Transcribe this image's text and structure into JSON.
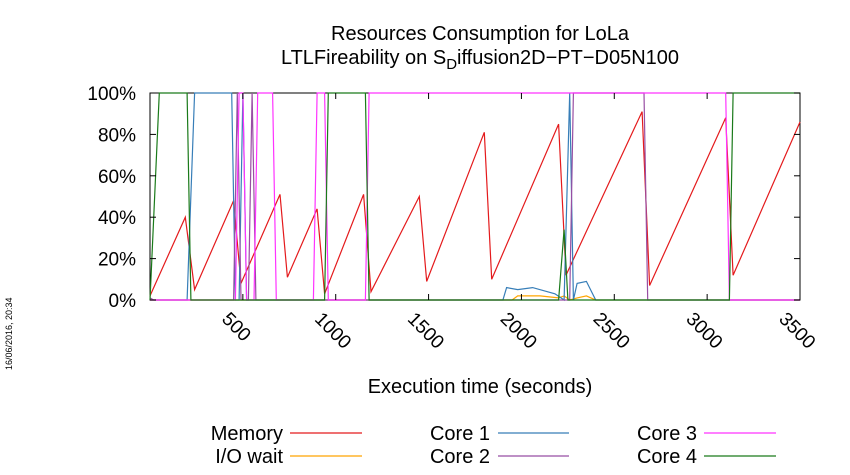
{
  "timestamp": "16/06/2016, 20:34",
  "chart_data": {
    "type": "line",
    "title": "Resources Consumption for LoLa",
    "subtitle_prefix": "LTLFireability on S",
    "subtitle_sub": "D",
    "subtitle_rest": "iffusion2D−PT−D05N100",
    "xlabel": "Execution time (seconds)",
    "ylabel": "",
    "xlim": [
      0,
      3500
    ],
    "ylim": [
      0,
      100
    ],
    "xticks": [
      500,
      1000,
      1500,
      2000,
      2500,
      3000,
      3500
    ],
    "yticks": [
      0,
      20,
      40,
      60,
      80,
      100
    ],
    "ytick_labels": [
      "0%",
      "20%",
      "40%",
      "60%",
      "80%",
      "100%"
    ],
    "grid": false,
    "legend_position": "bottom",
    "series": [
      {
        "name": "Memory",
        "color": "#e41a1c",
        "points": [
          [
            0,
            2
          ],
          [
            190,
            40
          ],
          [
            240,
            5
          ],
          [
            450,
            48
          ],
          [
            490,
            8
          ],
          [
            700,
            51
          ],
          [
            740,
            11
          ],
          [
            900,
            44
          ],
          [
            940,
            3
          ],
          [
            1150,
            51
          ],
          [
            1190,
            4
          ],
          [
            1450,
            50
          ],
          [
            1490,
            9
          ],
          [
            1800,
            81
          ],
          [
            1840,
            10
          ],
          [
            2200,
            85
          ],
          [
            2240,
            12
          ],
          [
            2650,
            91
          ],
          [
            2690,
            7
          ],
          [
            3100,
            88
          ],
          [
            3140,
            12
          ],
          [
            3500,
            86
          ]
        ]
      },
      {
        "name": "I/O wait",
        "color": "#ffa500",
        "points": [
          [
            0,
            0
          ],
          [
            1950,
            0
          ],
          [
            1980,
            2
          ],
          [
            2100,
            2
          ],
          [
            2200,
            1
          ],
          [
            2230,
            2
          ],
          [
            2260,
            0
          ],
          [
            2300,
            1
          ],
          [
            2350,
            2
          ],
          [
            2400,
            0
          ],
          [
            3500,
            0
          ]
        ]
      },
      {
        "name": "Core 1",
        "color": "#377eb8",
        "points": [
          [
            0,
            0
          ],
          [
            200,
            0
          ],
          [
            240,
            100
          ],
          [
            440,
            100
          ],
          [
            460,
            0
          ],
          [
            480,
            0
          ],
          [
            500,
            100
          ],
          [
            520,
            0
          ],
          [
            1900,
            0
          ],
          [
            1920,
            6
          ],
          [
            1980,
            5
          ],
          [
            2060,
            6
          ],
          [
            2180,
            3
          ],
          [
            2230,
            0
          ],
          [
            2260,
            100
          ],
          [
            2280,
            0
          ],
          [
            2300,
            8
          ],
          [
            2350,
            9
          ],
          [
            2400,
            0
          ],
          [
            3500,
            0
          ]
        ]
      },
      {
        "name": "Core 2",
        "color": "#984ea3",
        "points": [
          [
            0,
            1
          ],
          [
            20,
            0
          ],
          [
            450,
            0
          ],
          [
            470,
            100
          ],
          [
            490,
            0
          ],
          [
            530,
            0
          ],
          [
            550,
            100
          ],
          [
            570,
            0
          ],
          [
            2260,
            0
          ],
          [
            2280,
            100
          ],
          [
            2320,
            100
          ],
          [
            2340,
            100
          ],
          [
            2660,
            100
          ],
          [
            2680,
            0
          ],
          [
            3500,
            0
          ]
        ]
      },
      {
        "name": "Core 3",
        "color": "#ff33ff",
        "points": [
          [
            0,
            0
          ],
          [
            460,
            0
          ],
          [
            480,
            100
          ],
          [
            500,
            100
          ],
          [
            520,
            0
          ],
          [
            560,
            0
          ],
          [
            580,
            100
          ],
          [
            660,
            100
          ],
          [
            680,
            0
          ],
          [
            880,
            0
          ],
          [
            900,
            100
          ],
          [
            940,
            100
          ],
          [
            960,
            0
          ],
          [
            1160,
            0
          ],
          [
            1180,
            100
          ],
          [
            2280,
            100
          ],
          [
            2300,
            100
          ],
          [
            2640,
            100
          ],
          [
            2660,
            100
          ],
          [
            2680,
            100
          ],
          [
            3100,
            100
          ],
          [
            3120,
            0
          ],
          [
            3500,
            0
          ]
        ]
      },
      {
        "name": "Core 4",
        "color": "#1a7a1a",
        "points": [
          [
            0,
            0
          ],
          [
            50,
            100
          ],
          [
            200,
            100
          ],
          [
            220,
            0
          ],
          [
            940,
            0
          ],
          [
            960,
            100
          ],
          [
            1160,
            100
          ],
          [
            1180,
            0
          ],
          [
            2200,
            0
          ],
          [
            2230,
            34
          ],
          [
            2250,
            0
          ],
          [
            3120,
            0
          ],
          [
            3140,
            100
          ],
          [
            3500,
            100
          ]
        ]
      }
    ]
  }
}
